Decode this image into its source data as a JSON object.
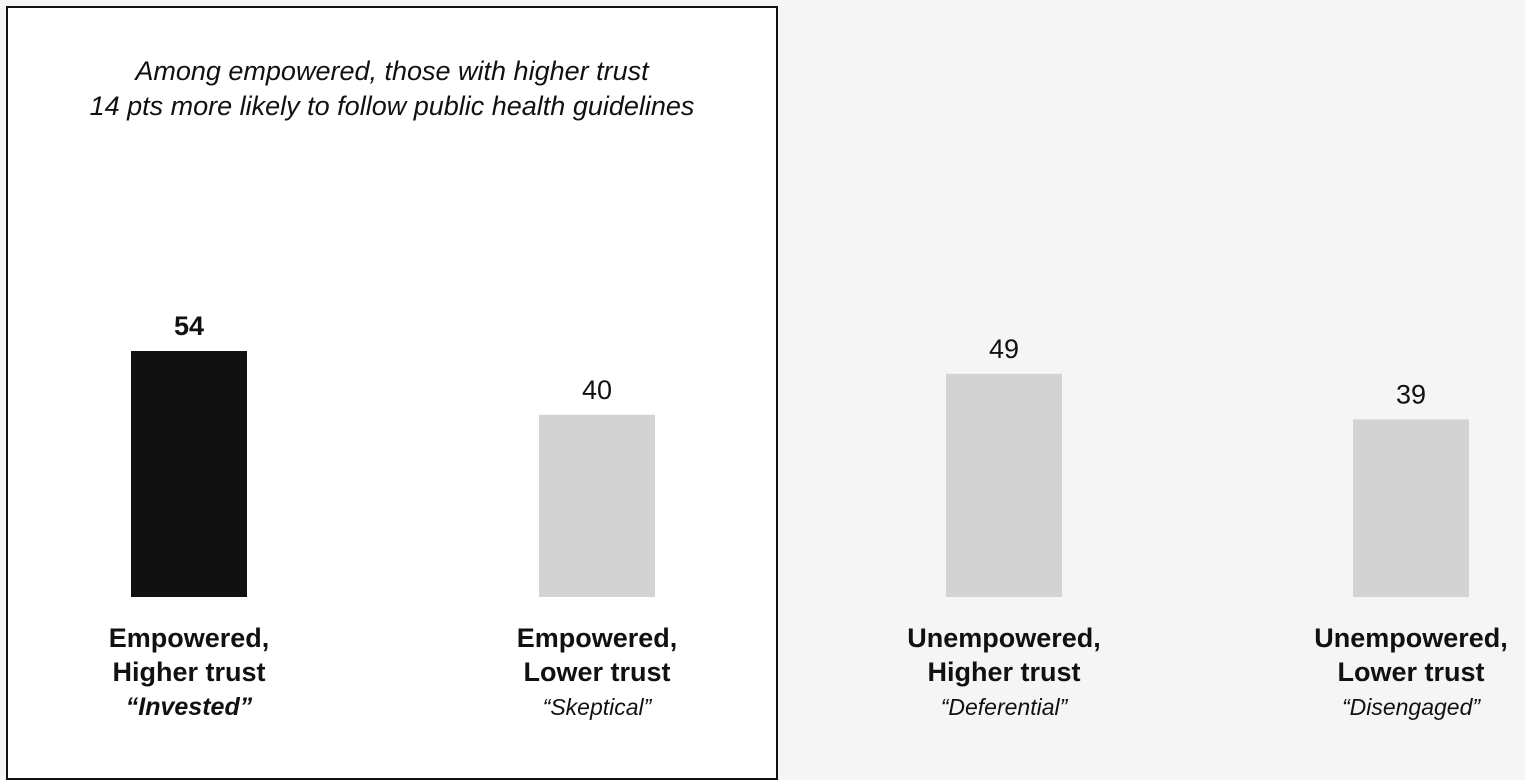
{
  "colors": {
    "highlight_bar": "#111111",
    "other_bar": "#d3d3d3",
    "panel_background": "#ffffff",
    "page_background": "#f5f5f5"
  },
  "annotation": {
    "line1": "Among empowered, those with higher trust",
    "line2": "14 pts more likely to follow public health guidelines"
  },
  "chart_data": {
    "type": "bar",
    "title": "",
    "xlabel": "",
    "ylabel": "",
    "grid": false,
    "ylim": [
      0,
      54
    ],
    "categories": [
      "Empowered, Higher trust",
      "Empowered, Lower trust",
      "Unempowered, Higher trust",
      "Unempowered, Lower trust"
    ],
    "values": [
      54,
      40,
      49,
      39
    ],
    "value_labels": [
      "54",
      "40",
      "49",
      "39"
    ],
    "highlighted_index": 0,
    "category_labels": [
      {
        "line1": "Empowered,",
        "line2": "Higher trust",
        "nickname": "“Invested”"
      },
      {
        "line1": "Empowered,",
        "line2": "Lower trust",
        "nickname": "“Skeptical”"
      },
      {
        "line1": "Unempowered,",
        "line2": "Higher trust",
        "nickname": "“Deferential”"
      },
      {
        "line1": "Unempowered,",
        "line2": "Lower trust",
        "nickname": "“Disengaged”"
      }
    ]
  }
}
